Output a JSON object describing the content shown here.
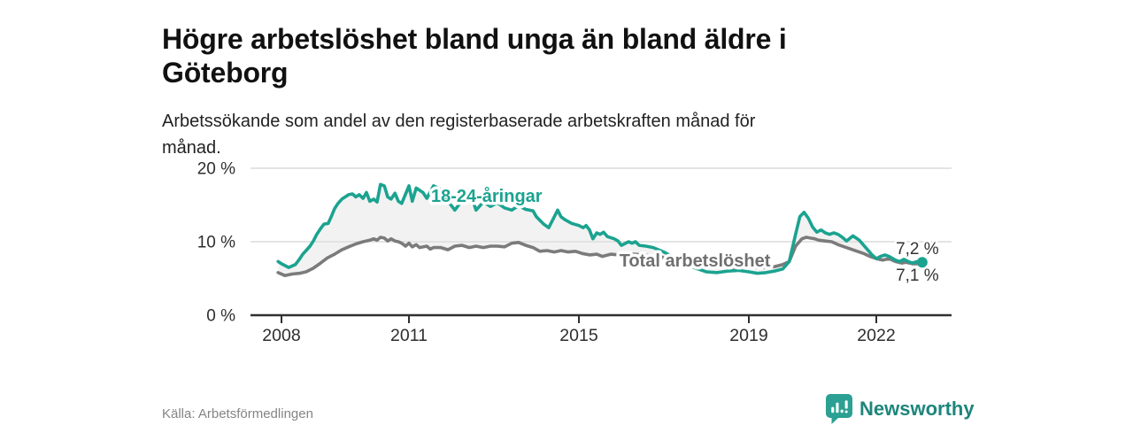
{
  "header": {
    "title_line1": "Högre arbetslöshet bland unga än bland äldre i",
    "title_line2": "Göteborg",
    "subtitle_line1": "Arbetssökande som andel av den registerbaserade arbetskraften månad för",
    "subtitle_line2": "månad."
  },
  "footer": {
    "source": "Källa: Arbetsförmedlingen",
    "logo_text": "Newsworthy"
  },
  "colors": {
    "accent_teal": "#1ba390",
    "line_gray": "#7b7b7b",
    "gridline": "#dcdcdc",
    "axis": "#303030",
    "axis_text": "#2e2e2e",
    "fill_between": "#f2f2f2",
    "total_label": "#707070",
    "value_label": "#333333"
  },
  "chart_data": {
    "type": "line",
    "title": "Högre arbetslöshet bland unga än bland äldre i Göteborg",
    "subtitle": "Arbetssökande som andel av den registerbaserade arbetskraften månad för månad.",
    "source": "Källa: Arbetsförmedlingen",
    "grid": "horizontal-only",
    "legend_position": "inline-labels",
    "x_axis": {
      "ticks": [
        2008,
        2011,
        2015,
        2019,
        2022
      ],
      "range": [
        2007.3,
        2023.8
      ]
    },
    "y_axis": {
      "tick_labels": [
        "0 %",
        "10 %",
        "20 %"
      ],
      "tick_values": [
        0,
        10,
        20
      ],
      "range": [
        0,
        21.8
      ]
    },
    "fill_between_color": "#f2f2f2",
    "series": [
      {
        "name": "18-24-åringar",
        "color": "#1ba390",
        "end_value_label": "7,2 %",
        "end_marker": true,
        "points": [
          [
            2007.92,
            7.3
          ],
          [
            2008.0,
            7.0
          ],
          [
            2008.17,
            6.5
          ],
          [
            2008.33,
            6.9
          ],
          [
            2008.42,
            7.6
          ],
          [
            2008.5,
            8.3
          ],
          [
            2008.58,
            8.8
          ],
          [
            2008.67,
            9.4
          ],
          [
            2008.75,
            10.1
          ],
          [
            2008.83,
            11.0
          ],
          [
            2008.92,
            11.8
          ],
          [
            2009.0,
            12.4
          ],
          [
            2009.1,
            12.5
          ],
          [
            2009.17,
            13.4
          ],
          [
            2009.25,
            14.5
          ],
          [
            2009.33,
            15.2
          ],
          [
            2009.42,
            15.8
          ],
          [
            2009.58,
            16.4
          ],
          [
            2009.67,
            16.5
          ],
          [
            2009.75,
            16.1
          ],
          [
            2009.83,
            16.4
          ],
          [
            2009.92,
            15.9
          ],
          [
            2010.0,
            16.7
          ],
          [
            2010.08,
            15.5
          ],
          [
            2010.17,
            15.8
          ],
          [
            2010.25,
            15.4
          ],
          [
            2010.33,
            17.8
          ],
          [
            2010.42,
            17.6
          ],
          [
            2010.5,
            16.1
          ],
          [
            2010.58,
            15.8
          ],
          [
            2010.67,
            16.6
          ],
          [
            2010.75,
            15.5
          ],
          [
            2010.83,
            15.2
          ],
          [
            2011.0,
            17.6
          ],
          [
            2011.08,
            15.5
          ],
          [
            2011.17,
            17.3
          ],
          [
            2011.33,
            16.7
          ],
          [
            2011.42,
            15.9
          ],
          [
            2011.58,
            17.6
          ],
          [
            2011.75,
            17.1
          ],
          [
            2011.92,
            15.5
          ],
          [
            2012.08,
            14.3
          ],
          [
            2012.25,
            15.6
          ],
          [
            2012.42,
            17.0
          ],
          [
            2012.58,
            14.3
          ],
          [
            2012.75,
            15.4
          ],
          [
            2012.92,
            14.8
          ],
          [
            2013.08,
            15.3
          ],
          [
            2013.25,
            14.6
          ],
          [
            2013.42,
            14.3
          ],
          [
            2013.58,
            14.9
          ],
          [
            2013.75,
            14.4
          ],
          [
            2013.92,
            14.2
          ],
          [
            2014.0,
            13.4
          ],
          [
            2014.17,
            12.4
          ],
          [
            2014.29,
            11.9
          ],
          [
            2014.42,
            13.4
          ],
          [
            2014.5,
            14.3
          ],
          [
            2014.58,
            13.4
          ],
          [
            2014.67,
            13.0
          ],
          [
            2014.83,
            12.5
          ],
          [
            2015.0,
            12.2
          ],
          [
            2015.1,
            11.9
          ],
          [
            2015.17,
            12.2
          ],
          [
            2015.25,
            11.6
          ],
          [
            2015.33,
            10.4
          ],
          [
            2015.42,
            11.2
          ],
          [
            2015.5,
            11.0
          ],
          [
            2015.58,
            11.3
          ],
          [
            2015.67,
            10.7
          ],
          [
            2015.83,
            10.4
          ],
          [
            2015.92,
            10.1
          ],
          [
            2016.0,
            9.5
          ],
          [
            2016.17,
            10.0
          ],
          [
            2016.25,
            9.8
          ],
          [
            2016.33,
            10.0
          ],
          [
            2016.42,
            9.5
          ],
          [
            2016.58,
            9.4
          ],
          [
            2016.75,
            9.2
          ],
          [
            2017.0,
            8.6
          ],
          [
            2017.25,
            7.8
          ],
          [
            2017.5,
            7.0
          ],
          [
            2017.75,
            6.4
          ],
          [
            2018.0,
            5.9
          ],
          [
            2018.25,
            5.8
          ],
          [
            2018.5,
            6.0
          ],
          [
            2018.75,
            6.1
          ],
          [
            2019.0,
            5.9
          ],
          [
            2019.2,
            5.7
          ],
          [
            2019.4,
            5.8
          ],
          [
            2019.6,
            6.0
          ],
          [
            2019.8,
            6.3
          ],
          [
            2019.95,
            7.3
          ],
          [
            2020.1,
            11.0
          ],
          [
            2020.2,
            13.4
          ],
          [
            2020.3,
            14.0
          ],
          [
            2020.4,
            13.2
          ],
          [
            2020.5,
            12.0
          ],
          [
            2020.6,
            11.3
          ],
          [
            2020.7,
            11.6
          ],
          [
            2020.8,
            11.2
          ],
          [
            2020.9,
            11.0
          ],
          [
            2021.0,
            11.2
          ],
          [
            2021.1,
            11.0
          ],
          [
            2021.2,
            10.6
          ],
          [
            2021.3,
            10.1
          ],
          [
            2021.45,
            10.8
          ],
          [
            2021.6,
            10.2
          ],
          [
            2021.75,
            9.2
          ],
          [
            2021.9,
            8.2
          ],
          [
            2022.0,
            7.7
          ],
          [
            2022.1,
            8.0
          ],
          [
            2022.2,
            8.2
          ],
          [
            2022.3,
            8.0
          ],
          [
            2022.45,
            7.5
          ],
          [
            2022.55,
            7.3
          ],
          [
            2022.65,
            7.6
          ],
          [
            2022.75,
            7.3
          ],
          [
            2022.85,
            7.1
          ],
          [
            2022.95,
            7.3
          ],
          [
            2023.08,
            7.2
          ]
        ]
      },
      {
        "name": "Total arbetslöshet",
        "color": "#7b7b7b",
        "end_value_label": "7,1 %",
        "end_marker": false,
        "points": [
          [
            2007.92,
            5.8
          ],
          [
            2008.08,
            5.4
          ],
          [
            2008.25,
            5.6
          ],
          [
            2008.42,
            5.7
          ],
          [
            2008.58,
            5.9
          ],
          [
            2008.75,
            6.4
          ],
          [
            2008.92,
            7.1
          ],
          [
            2009.08,
            7.8
          ],
          [
            2009.25,
            8.3
          ],
          [
            2009.42,
            8.9
          ],
          [
            2009.58,
            9.3
          ],
          [
            2009.75,
            9.7
          ],
          [
            2009.92,
            10.0
          ],
          [
            2010.08,
            10.2
          ],
          [
            2010.17,
            10.4
          ],
          [
            2010.25,
            10.2
          ],
          [
            2010.33,
            10.6
          ],
          [
            2010.42,
            10.5
          ],
          [
            2010.5,
            10.1
          ],
          [
            2010.58,
            10.4
          ],
          [
            2010.67,
            10.1
          ],
          [
            2010.75,
            10.0
          ],
          [
            2010.83,
            9.8
          ],
          [
            2010.92,
            9.4
          ],
          [
            2011.0,
            9.8
          ],
          [
            2011.08,
            9.3
          ],
          [
            2011.17,
            9.6
          ],
          [
            2011.25,
            9.2
          ],
          [
            2011.42,
            9.4
          ],
          [
            2011.5,
            9.0
          ],
          [
            2011.58,
            9.2
          ],
          [
            2011.75,
            9.2
          ],
          [
            2011.92,
            8.9
          ],
          [
            2012.08,
            9.4
          ],
          [
            2012.25,
            9.5
          ],
          [
            2012.42,
            9.2
          ],
          [
            2012.58,
            9.4
          ],
          [
            2012.75,
            9.2
          ],
          [
            2012.92,
            9.4
          ],
          [
            2013.08,
            9.4
          ],
          [
            2013.25,
            9.3
          ],
          [
            2013.42,
            9.8
          ],
          [
            2013.58,
            9.9
          ],
          [
            2013.75,
            9.5
          ],
          [
            2013.92,
            9.2
          ],
          [
            2014.08,
            8.7
          ],
          [
            2014.25,
            8.8
          ],
          [
            2014.42,
            8.6
          ],
          [
            2014.58,
            8.8
          ],
          [
            2014.75,
            8.6
          ],
          [
            2014.92,
            8.7
          ],
          [
            2015.08,
            8.4
          ],
          [
            2015.25,
            8.2
          ],
          [
            2015.42,
            8.3
          ],
          [
            2015.55,
            8.0
          ],
          [
            2015.75,
            8.3
          ],
          [
            2015.95,
            8.2
          ],
          [
            2016.1,
            8.4
          ],
          [
            2016.3,
            8.3
          ],
          [
            2016.5,
            8.2
          ],
          [
            2016.7,
            8.1
          ],
          [
            2016.9,
            8.0
          ],
          [
            2017.2,
            7.5
          ],
          [
            2017.5,
            7.1
          ],
          [
            2017.8,
            6.9
          ],
          [
            2018.1,
            6.7
          ],
          [
            2018.4,
            6.6
          ],
          [
            2018.7,
            6.5
          ],
          [
            2019.0,
            6.5
          ],
          [
            2019.3,
            6.5
          ],
          [
            2019.6,
            6.6
          ],
          [
            2019.8,
            6.9
          ],
          [
            2019.95,
            7.3
          ],
          [
            2020.1,
            9.4
          ],
          [
            2020.25,
            10.4
          ],
          [
            2020.35,
            10.6
          ],
          [
            2020.45,
            10.5
          ],
          [
            2020.55,
            10.4
          ],
          [
            2020.65,
            10.2
          ],
          [
            2020.8,
            10.1
          ],
          [
            2020.95,
            10.0
          ],
          [
            2021.1,
            9.6
          ],
          [
            2021.25,
            9.3
          ],
          [
            2021.4,
            9.0
          ],
          [
            2021.55,
            8.7
          ],
          [
            2021.7,
            8.4
          ],
          [
            2021.85,
            8.0
          ],
          [
            2022.0,
            7.7
          ],
          [
            2022.15,
            7.5
          ],
          [
            2022.3,
            7.7
          ],
          [
            2022.45,
            7.3
          ],
          [
            2022.6,
            7.1
          ],
          [
            2022.7,
            7.2
          ],
          [
            2022.85,
            7.0
          ],
          [
            2022.95,
            7.0
          ],
          [
            2023.08,
            7.1
          ]
        ]
      }
    ],
    "annotations": [
      {
        "text": "18-24-åringar",
        "x_year": 2011.52,
        "y_value": 15.4,
        "color": "#1ba390",
        "bold": true
      },
      {
        "text": "Total arbetslöshet",
        "x_year": 2015.95,
        "y_value": 6.6,
        "color": "#707070",
        "bold": true
      },
      {
        "text": "7,2 %",
        "x_year": 2022.46,
        "y_value": 8.3,
        "color": "#333333",
        "bold": false
      },
      {
        "text": "7,1 %",
        "x_year": 2022.46,
        "y_value": 4.7,
        "color": "#333333",
        "bold": false
      }
    ]
  }
}
